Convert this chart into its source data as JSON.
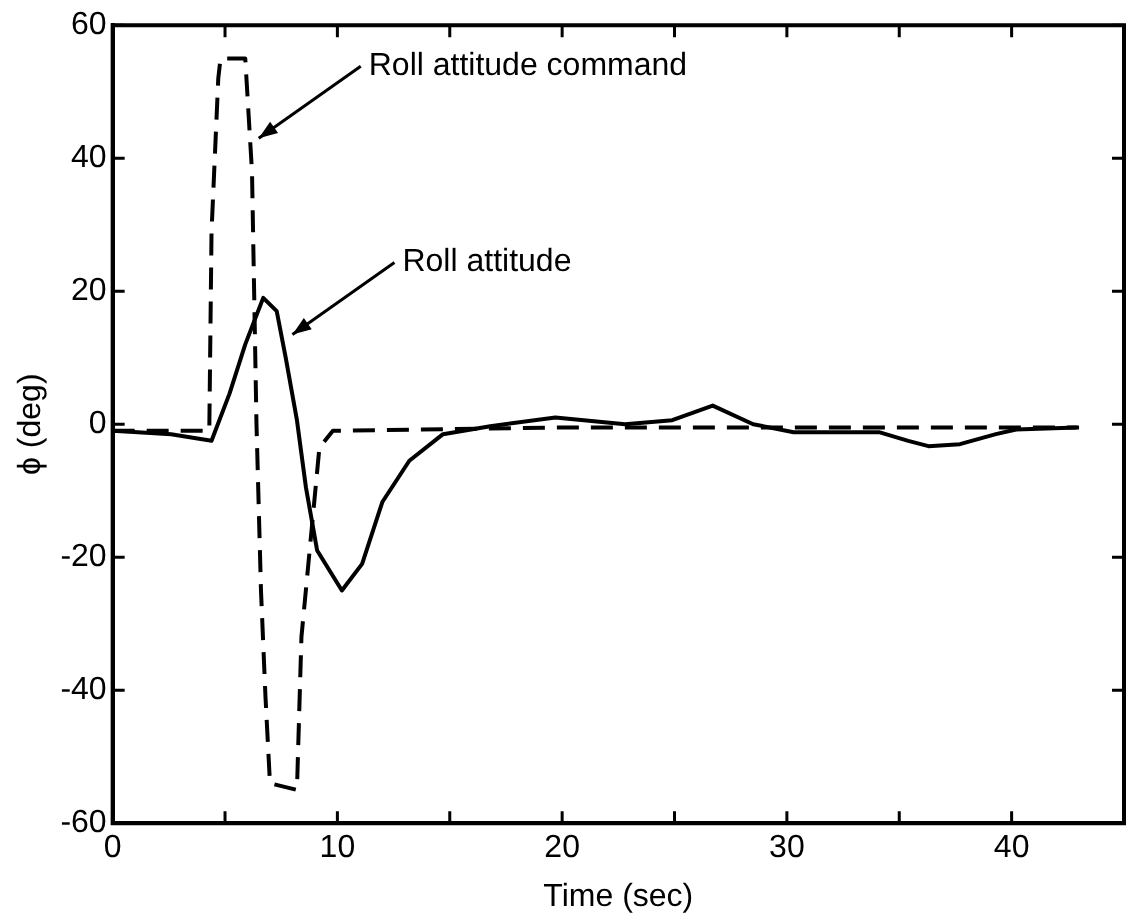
{
  "chart_data": {
    "type": "line",
    "xlabel": "Time (sec)",
    "ylabel": "ϕ (deg)",
    "xlim": [
      0,
      45
    ],
    "xticks": [
      0,
      {
        "value": 5,
        "label": null
      },
      10,
      {
        "value": 15,
        "label": null
      },
      20,
      {
        "value": 25,
        "label": null
      },
      30,
      {
        "value": 35,
        "label": null
      },
      40
    ],
    "ylim": [
      -60,
      60
    ],
    "yticks": [
      -60,
      -40,
      -20,
      0,
      20,
      40,
      60
    ],
    "grid": false,
    "legend": false,
    "marker": "none",
    "series": [
      {
        "color": "#000000",
        "line_style": "dashed",
        "x": [
          0,
          4.3,
          4.4,
          4.7,
          4.8,
          5.9,
          6.2,
          6.4,
          6.6,
          6.8,
          7.0,
          8.2,
          8.4,
          9.2,
          9.8,
          20,
          30,
          43
        ],
        "values": [
          -1,
          -1,
          29,
          52,
          55,
          55,
          38,
          0,
          -25,
          -41,
          -54,
          -55,
          -32,
          -3.5,
          -1,
          -0.5,
          -0.5,
          -0.5
        ]
      },
      {
        "color": "#000000",
        "line_style": "solid",
        "x": [
          0,
          2.6,
          4.4,
          5.2,
          5.9,
          6.7,
          7.3,
          7.7,
          8.2,
          8.6,
          9.1,
          10.2,
          11.1,
          12.0,
          13.2,
          14.7,
          16.8,
          19.7,
          22.8,
          24.9,
          26.7,
          28.5,
          30.3,
          34.1,
          35.4,
          36.3,
          37.7,
          39.3,
          40.2,
          42.9
        ],
        "values": [
          -1,
          -1.5,
          -2.5,
          4.6,
          12,
          19,
          17,
          10,
          0.6,
          -9.5,
          -19,
          -25,
          -21,
          -11.7,
          -5.5,
          -1.5,
          -0.3,
          1,
          0,
          0.6,
          2.8,
          0,
          -1.2,
          -1.2,
          -2.5,
          -3.3,
          -3,
          -1.5,
          -0.8,
          -0.5
        ]
      }
    ],
    "annotations": [
      {
        "text": "Roll attitude command",
        "x": 6.5,
        "y": 43
      },
      {
        "text": "Roll attitude",
        "x": 8,
        "y": 13.5
      }
    ]
  }
}
